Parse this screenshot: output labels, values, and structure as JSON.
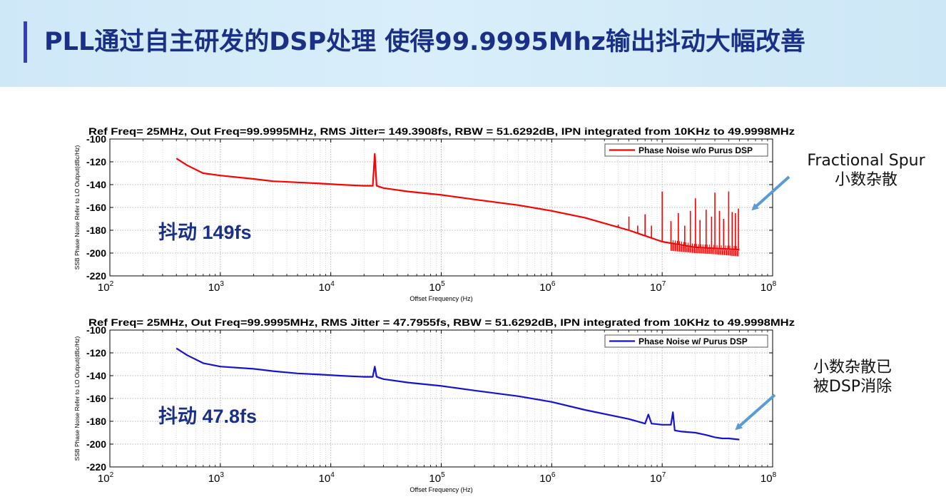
{
  "page": {
    "title": "PLL通过自主研发的DSP处理 使得99.9995Mhz输出抖动大幅改善",
    "accent_color": "#3b3db8",
    "title_color": "#1a2f86"
  },
  "annotations": {
    "top": {
      "line1": "Fractional Spur",
      "line2": "小数杂散"
    },
    "bottom": {
      "line1": "小数杂散已",
      "line2": "被DSP消除"
    },
    "arrow_color": "#5b9bd5"
  },
  "chart_data": [
    {
      "type": "line",
      "title": "Ref Freq= 25MHz, Out Freq=99.9995MHz, RMS Jitter= 149.3908fs, RBW = 51.6292dB, IPN integrated from 10KHz to 49.9998MHz",
      "xlabel": "Offset Frequency (Hz)",
      "ylabel": "SSB Phase Noise Refer to LO Output(dBc/Hz)",
      "xscale": "log",
      "xlim": [
        100,
        100000000
      ],
      "ylim": [
        -220,
        -100
      ],
      "yticks": [
        "-100",
        "-120",
        "-140",
        "-160",
        "-180",
        "-200",
        "-220"
      ],
      "xticks": [
        "2",
        "3",
        "4",
        "5",
        "6",
        "7",
        "8"
      ],
      "grid": true,
      "legend": "top-right",
      "inset_label": "抖动 149fs",
      "series": [
        {
          "name": "Phase Noise w/o Purus DSP",
          "color": "#ff0000",
          "x": [
            400,
            500,
            700,
            1000,
            2000,
            3000,
            5000,
            8000,
            12000,
            20000,
            24000,
            25000,
            26000,
            30000,
            50000,
            100000,
            200000,
            500000,
            1000000,
            2000000,
            5000000,
            10000000,
            20000000,
            49999800
          ],
          "y": [
            -117,
            -123,
            -130,
            -132,
            -135,
            -137,
            -138,
            -139,
            -140,
            -141,
            -141,
            -113,
            -141,
            -143,
            -146,
            -149,
            -153,
            -158,
            -163,
            -169,
            -180,
            -190,
            -195,
            -197
          ],
          "spurs": [
            {
              "x": 4000000,
              "y": -175
            },
            {
              "x": 5000000,
              "y": -168
            },
            {
              "x": 6000000,
              "y": -176
            },
            {
              "x": 7000000,
              "y": -166
            },
            {
              "x": 8000000,
              "y": -176
            },
            {
              "x": 10000000,
              "y": -146
            },
            {
              "x": 12000000,
              "y": -172
            },
            {
              "x": 14000000,
              "y": -165
            },
            {
              "x": 16000000,
              "y": -176
            },
            {
              "x": 18000000,
              "y": -163
            },
            {
              "x": 20000000,
              "y": -152
            },
            {
              "x": 22000000,
              "y": -171
            },
            {
              "x": 25000000,
              "y": -162
            },
            {
              "x": 28000000,
              "y": -168
            },
            {
              "x": 30000000,
              "y": -147
            },
            {
              "x": 33000000,
              "y": -163
            },
            {
              "x": 36000000,
              "y": -170
            },
            {
              "x": 40000000,
              "y": -146
            },
            {
              "x": 43000000,
              "y": -164
            },
            {
              "x": 46000000,
              "y": -165
            },
            {
              "x": 49000000,
              "y": -161
            }
          ],
          "floor": [
            {
              "x": 12000000,
              "y": -198
            },
            {
              "x": 20000000,
              "y": -200
            },
            {
              "x": 30000000,
              "y": -201
            },
            {
              "x": 49999800,
              "y": -203
            }
          ]
        }
      ]
    },
    {
      "type": "line",
      "title": "Ref Freq= 25MHz, Out Freq=99.9995MHz, RMS Jitter = 47.7955fs, RBW = 51.6292dB, IPN integrated from 10KHz to 49.9998MHz",
      "xlabel": "Offset Frequency (Hz)",
      "ylabel": "SSB Phase Noise Refer to LO Output(dBc/Hz)",
      "xscale": "log",
      "xlim": [
        100,
        100000000
      ],
      "ylim": [
        -220,
        -100
      ],
      "yticks": [
        "-100",
        "-120",
        "-140",
        "-160",
        "-180",
        "-200",
        "-220"
      ],
      "xticks": [
        "2",
        "3",
        "4",
        "5",
        "6",
        "7",
        "8"
      ],
      "grid": true,
      "legend": "top-right",
      "inset_label": "抖动 47.8fs",
      "series": [
        {
          "name": "Phase Noise w/ Purus DSP",
          "color": "#1414d0",
          "x": [
            400,
            500,
            700,
            1000,
            2000,
            3000,
            5000,
            8000,
            12000,
            20000,
            24000,
            25000,
            26000,
            30000,
            50000,
            100000,
            200000,
            500000,
            1000000,
            2000000,
            5000000,
            7000000,
            7500000,
            8000000,
            10000000,
            12000000,
            12500000,
            13000000,
            15000000,
            20000000,
            25000000,
            30000000,
            35000000,
            40000000,
            49999800
          ],
          "y": [
            -116,
            -122,
            -129,
            -132,
            -134,
            -136,
            -138,
            -139,
            -140,
            -141,
            -141,
            -132,
            -141,
            -143,
            -146,
            -149,
            -153,
            -158,
            -163,
            -170,
            -178,
            -182,
            -174,
            -182,
            -183,
            -183,
            -172,
            -188,
            -189,
            -190,
            -192,
            -194,
            -195,
            -195,
            -196
          ],
          "spurs": [],
          "floor": []
        }
      ]
    }
  ]
}
